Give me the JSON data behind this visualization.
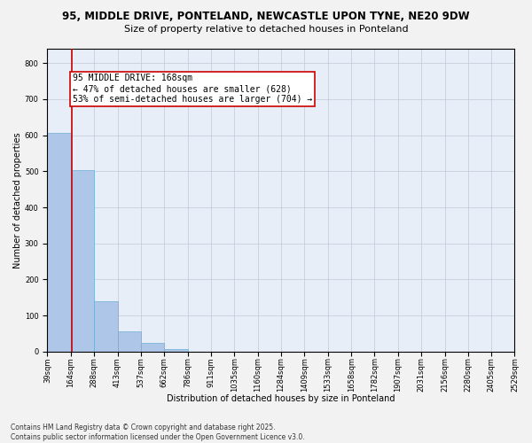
{
  "title_line1": "95, MIDDLE DRIVE, PONTELAND, NEWCASTLE UPON TYNE, NE20 9DW",
  "title_line2": "Size of property relative to detached houses in Ponteland",
  "xlabel": "Distribution of detached houses by size in Ponteland",
  "ylabel": "Number of detached properties",
  "bar_edges": [
    39,
    164,
    288,
    413,
    537,
    662,
    786,
    911,
    1035,
    1160,
    1284,
    1409,
    1533,
    1658,
    1782,
    1907,
    2031,
    2156,
    2280,
    2405,
    2529
  ],
  "bar_heights": [
    607,
    504,
    140,
    57,
    25,
    7,
    0,
    0,
    0,
    0,
    0,
    0,
    0,
    0,
    0,
    0,
    0,
    0,
    0,
    0
  ],
  "bar_color": "#aec6e8",
  "bar_edge_color": "#6aaed6",
  "grid_color": "#c0c8d8",
  "background_color": "#e8eef8",
  "fig_background_color": "#f2f2f2",
  "vline_x": 168,
  "vline_color": "#cc0000",
  "annotation_text": "95 MIDDLE DRIVE: 168sqm\n← 47% of detached houses are smaller (628)\n53% of semi-detached houses are larger (704) →",
  "annotation_box_color": "#ffffff",
  "annotation_border_color": "#cc0000",
  "ylim": [
    0,
    840
  ],
  "yticks": [
    0,
    100,
    200,
    300,
    400,
    500,
    600,
    700,
    800
  ],
  "tick_labels": [
    "39sqm",
    "164sqm",
    "288sqm",
    "413sqm",
    "537sqm",
    "662sqm",
    "786sqm",
    "911sqm",
    "1035sqm",
    "1160sqm",
    "1284sqm",
    "1409sqm",
    "1533sqm",
    "1658sqm",
    "1782sqm",
    "1907sqm",
    "2031sqm",
    "2156sqm",
    "2280sqm",
    "2405sqm",
    "2529sqm"
  ],
  "footnote": "Contains HM Land Registry data © Crown copyright and database right 2025.\nContains public sector information licensed under the Open Government Licence v3.0.",
  "title_fontsize": 8.5,
  "subtitle_fontsize": 8,
  "axis_label_fontsize": 7,
  "tick_fontsize": 6,
  "footnote_fontsize": 5.5,
  "annotation_fontsize": 7
}
